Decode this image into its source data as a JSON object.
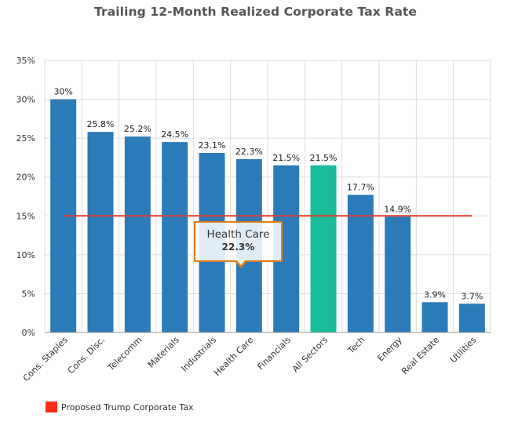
{
  "chart_data": {
    "type": "bar",
    "title": "Trailing 12-Month Realized Corporate Tax Rate",
    "categories": [
      "Cons. Staples",
      "Cons. Disc.",
      "Telecomm",
      "Materials",
      "Industrials",
      "Health Care",
      "Financials",
      "All Sectors",
      "Tech",
      "Energy",
      "Real Estate",
      "Utilities"
    ],
    "values": [
      30,
      25.8,
      25.2,
      24.5,
      23.1,
      22.3,
      21.5,
      21.5,
      17.7,
      14.9,
      3.9,
      3.7
    ],
    "data_labels": [
      "30%",
      "25.8%",
      "25.2%",
      "24.5%",
      "23.1%",
      "22.3%",
      "21.5%",
      "21.5%",
      "17.7%",
      "14.9%",
      "3.9%",
      "3.7%"
    ],
    "bar_color": "#2b7bb9",
    "highlight_category": "All Sectors",
    "highlight_color": "#1abc9c",
    "ylim": [
      0,
      35
    ],
    "yticks": [
      0,
      5,
      10,
      15,
      20,
      25,
      30,
      35
    ],
    "ytick_labels": [
      "0%",
      "5%",
      "10%",
      "15%",
      "20%",
      "25%",
      "30%",
      "35%"
    ],
    "grid": true,
    "reference_line": {
      "name": "Proposed Trump Corporate Tax",
      "value": 15,
      "color": "#e23b2e"
    },
    "legend": {
      "position": "bottom-left",
      "label": "Proposed Trump Corporate Tax",
      "color": "#ff2a1a"
    },
    "tooltip": {
      "category": "Health Care",
      "value": "22.3%",
      "border_color": "#e07b1a"
    }
  }
}
